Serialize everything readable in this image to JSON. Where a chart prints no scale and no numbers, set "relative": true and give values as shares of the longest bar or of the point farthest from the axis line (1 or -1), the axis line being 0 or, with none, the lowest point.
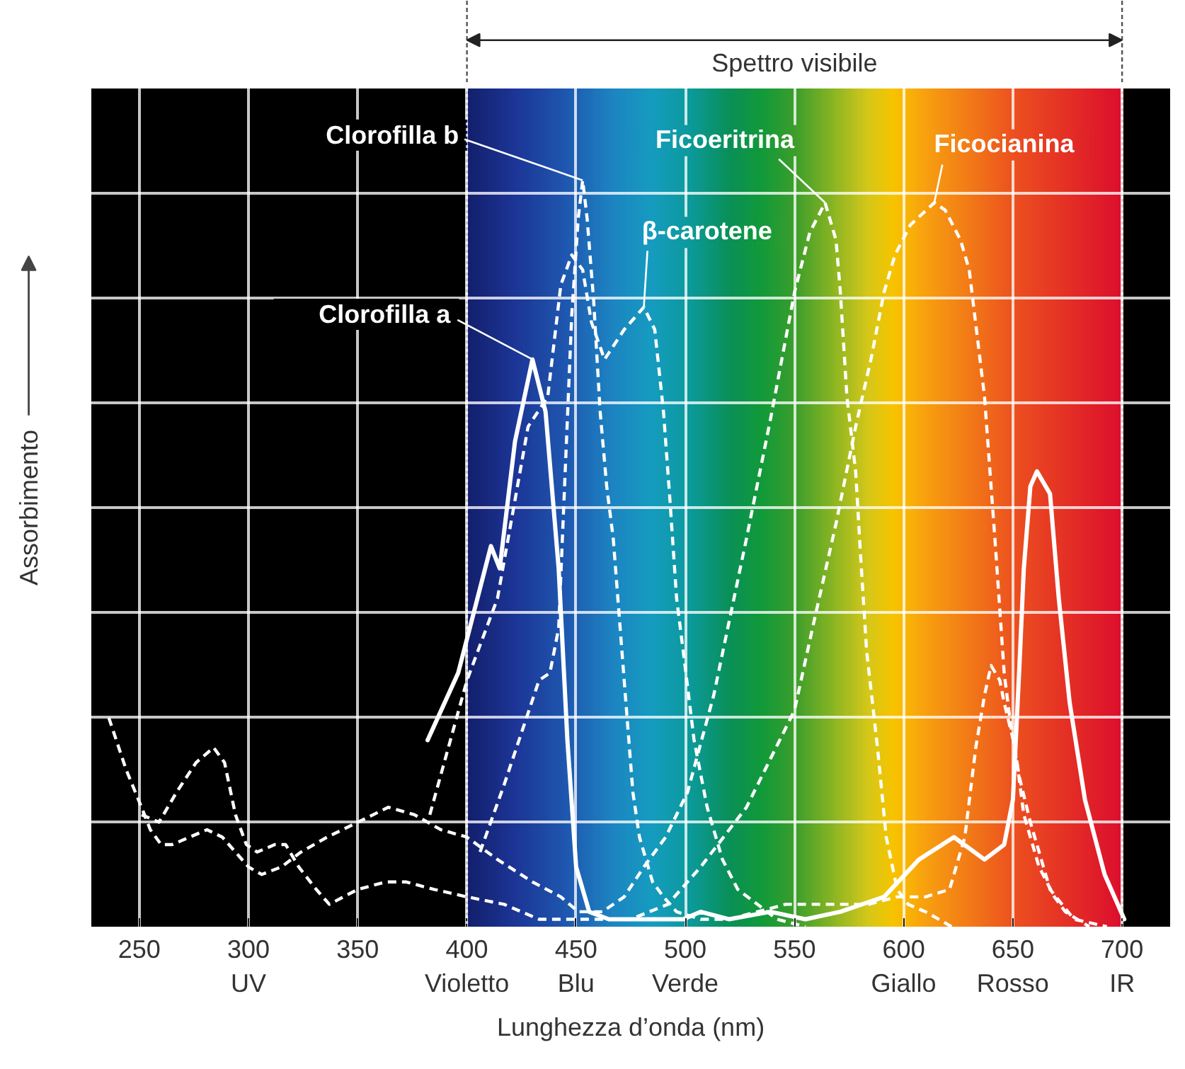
{
  "chart_data": {
    "type": "line",
    "relative": true,
    "xlabel": "Lunghezza d’onda (nm)",
    "ylabel": "Assorbimento",
    "xlim": [
      228,
      722
    ],
    "xticks": [
      250,
      {
        "value": 300,
        "label": "300\nUV"
      },
      350,
      {
        "value": 400,
        "label": "400\nVioletto"
      },
      {
        "value": 450,
        "label": "450\nBlu"
      },
      {
        "value": 500,
        "label": "500\nVerde"
      },
      550,
      {
        "value": 600,
        "label": "600\nGiallo"
      },
      {
        "value": 650,
        "label": "650\nRosso"
      },
      {
        "value": 700,
        "label": "700\nIR"
      }
    ],
    "grid": true,
    "bands": [
      {
        "axis": "x",
        "from": 400,
        "to": 700,
        "label": "Spettro visibile"
      }
    ],
    "series": [
      {
        "name": "Clorofilla a",
        "color": "#ffffff",
        "line_style": "solid",
        "x": [
          382,
          396,
          411,
          415,
          422,
          430,
          436,
          442,
          446,
          450,
          456,
          465,
          499,
          507,
          520,
          539,
          555,
          571,
          591,
          607,
          623,
          637,
          646,
          650,
          653,
          655,
          658,
          661,
          667,
          671,
          676,
          683,
          692,
          701
        ],
        "values": [
          0.25,
          0.34,
          0.51,
          0.48,
          0.65,
          0.76,
          0.69,
          0.48,
          0.25,
          0.08,
          0.02,
          0.01,
          0.01,
          0.02,
          0.01,
          0.02,
          0.01,
          0.02,
          0.04,
          0.09,
          0.12,
          0.09,
          0.11,
          0.17,
          0.35,
          0.48,
          0.59,
          0.61,
          0.58,
          0.44,
          0.3,
          0.17,
          0.07,
          0.01
        ]
      },
      {
        "name": "Clorofilla b",
        "color": "#ffffff",
        "line_style": "dashed",
        "x": [
          406,
          417,
          433,
          438,
          442,
          445,
          448,
          451,
          453,
          455,
          458,
          461,
          464,
          467,
          472,
          476,
          479,
          485,
          490,
          496,
          507,
          520,
          533,
          546,
          558,
          571,
          584,
          597,
          610,
          621,
          628,
          633,
          637,
          640,
          644,
          646,
          651,
          655,
          662,
          669,
          674,
          685
        ],
        "values": [
          0.1,
          0.19,
          0.33,
          0.34,
          0.4,
          0.61,
          0.82,
          0.95,
          1.0,
          0.95,
          0.84,
          0.69,
          0.59,
          0.52,
          0.33,
          0.18,
          0.12,
          0.06,
          0.04,
          0.02,
          0.01,
          0.01,
          0.02,
          0.03,
          0.03,
          0.03,
          0.03,
          0.04,
          0.04,
          0.05,
          0.12,
          0.24,
          0.31,
          0.35,
          0.33,
          0.3,
          0.24,
          0.15,
          0.08,
          0.04,
          0.02,
          0
        ]
      },
      {
        "name": "β-carotene",
        "color": "#ffffff",
        "line_style": "dashed",
        "x": [
          383,
          400,
          414,
          428,
          437,
          443,
          448,
          453,
          457,
          463,
          472,
          481,
          486,
          490,
          493,
          496,
          499,
          504,
          510,
          517,
          524,
          533,
          542,
          555
        ],
        "values": [
          0.15,
          0.33,
          0.44,
          0.67,
          0.71,
          0.86,
          0.9,
          0.88,
          0.81,
          0.76,
          0.8,
          0.83,
          0.8,
          0.69,
          0.57,
          0.44,
          0.37,
          0.25,
          0.16,
          0.09,
          0.05,
          0.03,
          0.01,
          0
        ]
      },
      {
        "name": "Ficoeritrina",
        "color": "#ffffff",
        "line_style": "dashed",
        "x": [
          236,
          244,
          251,
          255,
          260,
          265,
          273,
          281,
          288,
          294,
          300,
          306,
          315,
          324,
          336,
          350,
          364,
          376,
          388,
          400,
          414,
          430,
          443,
          451,
          462,
          472,
          481,
          491,
          501,
          513,
          528,
          539,
          550,
          557,
          564,
          569,
          571,
          574,
          578,
          580,
          583,
          588,
          592,
          597,
          602,
          610,
          622
        ],
        "values": [
          0.28,
          0.21,
          0.16,
          0.13,
          0.11,
          0.11,
          0.12,
          0.13,
          0.12,
          0.1,
          0.08,
          0.07,
          0.08,
          0.1,
          0.12,
          0.14,
          0.16,
          0.15,
          0.13,
          0.12,
          0.09,
          0.06,
          0.04,
          0.02,
          0.02,
          0.04,
          0.08,
          0.12,
          0.18,
          0.31,
          0.52,
          0.68,
          0.85,
          0.93,
          0.97,
          0.92,
          0.85,
          0.71,
          0.61,
          0.51,
          0.37,
          0.24,
          0.12,
          0.05,
          0.03,
          0.02,
          0
        ]
      },
      {
        "name": "Ficocianina",
        "color": "#ffffff",
        "line_style": "dashed",
        "x": [
          251,
          259,
          267,
          276,
          284,
          289,
          294,
          299,
          304,
          312,
          317,
          323,
          331,
          337,
          350,
          363,
          372,
          385,
          400,
          417,
          433,
          451,
          475,
          492,
          507,
          528,
          550,
          559,
          569,
          578,
          585,
          591,
          596,
          603,
          614,
          619,
          626,
          630,
          637,
          642,
          646,
          649,
          653,
          658,
          667,
          678,
          693
        ],
        "values": [
          0.15,
          0.14,
          0.18,
          0.22,
          0.24,
          0.22,
          0.15,
          0.11,
          0.1,
          0.11,
          0.11,
          0.08,
          0.05,
          0.03,
          0.05,
          0.06,
          0.06,
          0.05,
          0.04,
          0.03,
          0.01,
          0.01,
          0.01,
          0.03,
          0.08,
          0.16,
          0.29,
          0.41,
          0.54,
          0.67,
          0.76,
          0.85,
          0.9,
          0.94,
          0.97,
          0.96,
          0.92,
          0.88,
          0.71,
          0.51,
          0.34,
          0.27,
          0.2,
          0.14,
          0.05,
          0.01,
          0
        ]
      }
    ]
  }
}
